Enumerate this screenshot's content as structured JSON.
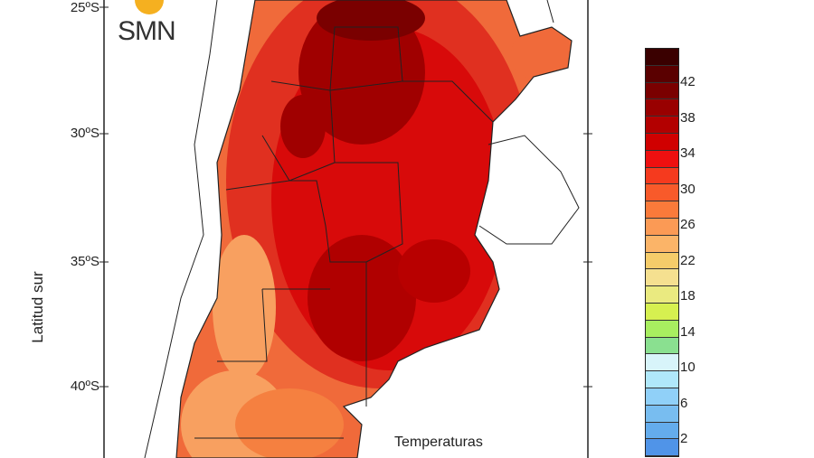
{
  "logo": {
    "text": "SMN"
  },
  "axis": {
    "ylabel": "Latitud sur",
    "ticks": [
      "25ºS",
      "30ºS",
      "35ºS",
      "40ºS"
    ]
  },
  "caption": "Temperaturas",
  "legend": {
    "ticks": [
      "42",
      "38",
      "34",
      "30",
      "26",
      "22",
      "18",
      "14",
      "10",
      "6",
      "2"
    ],
    "colors": [
      "#3a0000",
      "#5a0000",
      "#7a0000",
      "#990000",
      "#b30000",
      "#d00000",
      "#ee1010",
      "#f53a1e",
      "#f85a2a",
      "#fa7a3a",
      "#fb9a55",
      "#fbb468",
      "#f5cc6a",
      "#f5e090",
      "#eaea80",
      "#d6f050",
      "#a8ee60",
      "#8ae090",
      "#d8f4fa",
      "#b0e8fa",
      "#90d0f8",
      "#78bdf0",
      "#64acec",
      "#5094e8"
    ]
  }
}
